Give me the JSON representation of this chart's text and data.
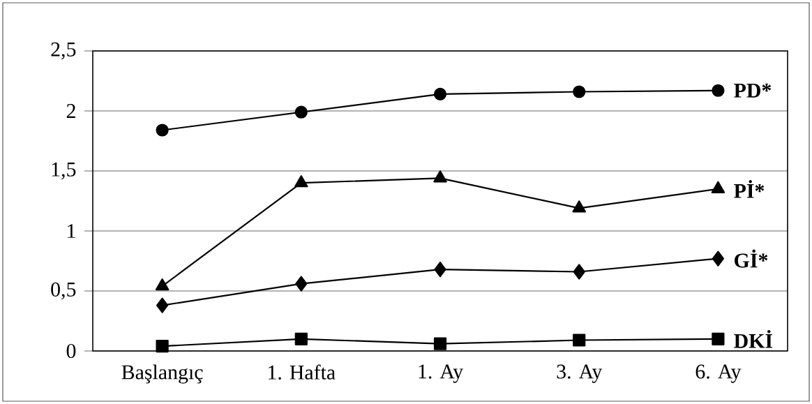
{
  "chart_data": {
    "type": "line",
    "categories": [
      "Başlangıç",
      "1. Hafta",
      "1. Ay",
      "3. Ay",
      "6. Ay"
    ],
    "series": [
      {
        "name": "PD*",
        "color": "#000000",
        "marker": "circle",
        "values": [
          1.84,
          1.99,
          2.14,
          2.16,
          2.17
        ]
      },
      {
        "name": "Pİ*",
        "color": "#000000",
        "marker": "triangle",
        "values": [
          0.54,
          1.4,
          1.44,
          1.19,
          1.35
        ]
      },
      {
        "name": "Gİ*",
        "color": "#000000",
        "marker": "diamond",
        "values": [
          0.38,
          0.56,
          0.68,
          0.66,
          0.77
        ]
      },
      {
        "name": "DKİ",
        "color": "#000000",
        "marker": "square",
        "values": [
          0.04,
          0.1,
          0.06,
          0.09,
          0.1
        ]
      }
    ],
    "ylim": [
      0,
      2.5
    ],
    "yticks": [
      0,
      {
        "value": 0.5,
        "label": "0,5"
      },
      1,
      {
        "value": 1.5,
        "label": "1,5"
      },
      2,
      {
        "value": 2.5,
        "label": "2,5"
      }
    ],
    "grid": "y",
    "legend": false,
    "line_style": "solid"
  }
}
